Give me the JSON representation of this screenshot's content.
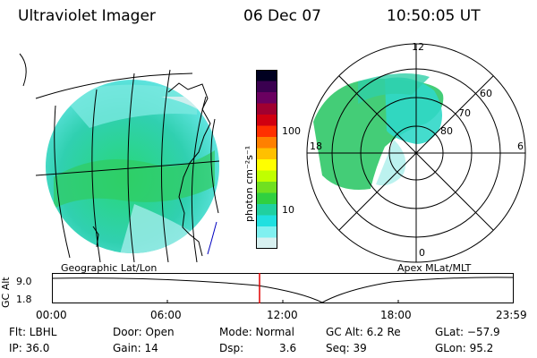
{
  "header": {
    "instrument": "Ultraviolet Imager",
    "date": "06 Dec 07",
    "time": "10:50:05 UT"
  },
  "geo_panel": {
    "label": "Geographic Lat/Lon"
  },
  "polar_panel": {
    "label": "Apex MLat/MLT",
    "mlt_labels": [
      "12",
      "6",
      "0",
      "18"
    ],
    "mlat_labels": [
      "60",
      "70",
      "80"
    ]
  },
  "colorbar": {
    "units": "photon cm⁻²s⁻¹",
    "ticks": [
      "100",
      "10"
    ],
    "colors": [
      "#000020",
      "#3a0050",
      "#6a0060",
      "#a00030",
      "#d00010",
      "#ff3000",
      "#ff8000",
      "#ffc000",
      "#ffff00",
      "#c0ff00",
      "#70e020",
      "#30d040",
      "#20d0a0",
      "#20e0e0",
      "#80f0f0",
      "#d8f0f0"
    ]
  },
  "altitude_plot": {
    "ylabel": "GC Alt",
    "yticks": [
      "9.0",
      "1.8"
    ],
    "xticks": [
      "00:00",
      "06:00",
      "12:00",
      "18:00",
      "23:59"
    ],
    "marker_color": "#e00000"
  },
  "info": {
    "flt": "Flt: LBHL",
    "ip": "IP: 36.0",
    "door": "Door: Open",
    "gain": "Gain: 14",
    "mode": "Mode: Normal",
    "dsp_label": "Dsp:",
    "dsp_value": "3.6",
    "gc_alt": "GC Alt: 6.2 Re",
    "seq": "Seq: 39",
    "glat": "GLat: −57.9",
    "glon": "GLon:  95.2"
  }
}
